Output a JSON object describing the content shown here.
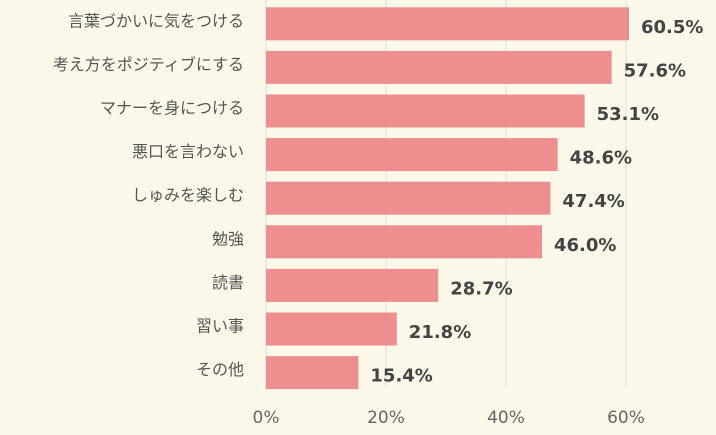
{
  "chart_data": {
    "type": "bar",
    "orientation": "horizontal",
    "categories": [
      "言葉づかいに気をつける",
      "考え方をポジティブにする",
      "マナーを身につける",
      "悪口を言わない",
      "しゅみを楽しむ",
      "勉強",
      "読書",
      "習い事",
      "その他"
    ],
    "values": [
      60.5,
      57.6,
      53.1,
      48.6,
      47.4,
      46.0,
      28.7,
      21.8,
      15.4
    ],
    "value_labels": [
      "60.5%",
      "57.6%",
      "53.1%",
      "48.6%",
      "47.4%",
      "46.0%",
      "28.7%",
      "21.8%",
      "15.4%"
    ],
    "color": "#ee8e8e",
    "xlim": [
      0,
      75
    ],
    "xticks": [
      {
        "value": 0,
        "label": "0%"
      },
      {
        "value": 20,
        "label": "20%"
      },
      {
        "value": 40,
        "label": "40%"
      },
      {
        "value": 60,
        "label": "60%"
      }
    ],
    "grid": true
  }
}
